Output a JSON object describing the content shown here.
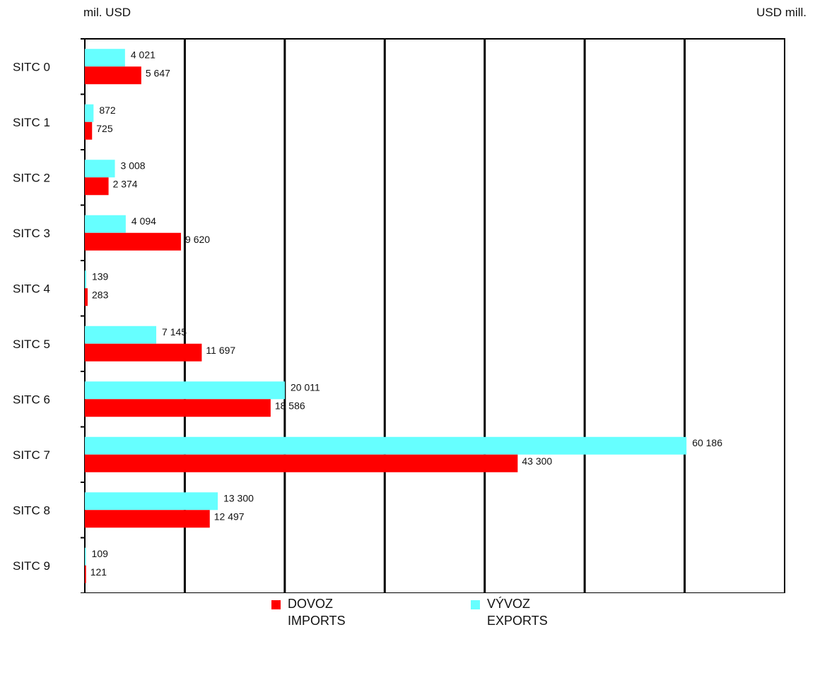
{
  "header": {
    "unit_left": "mil. USD",
    "unit_right": "USD mill."
  },
  "legend": {
    "imports": {
      "line1": "DOVOZ",
      "line2": "IMPORTS",
      "color": "#ff0000"
    },
    "exports": {
      "line1": "VÝVOZ",
      "line2": "EXPORTS",
      "color": "#66ffff"
    }
  },
  "chart_data": {
    "type": "bar",
    "orientation": "horizontal",
    "categories": [
      "SITC 0",
      "SITC 1",
      "SITC 2",
      "SITC 3",
      "SITC 4",
      "SITC 5",
      "SITC 6",
      "SITC 7",
      "SITC 8",
      "SITC 9"
    ],
    "series": [
      {
        "name": "VÝVOZ EXPORTS",
        "key": "exports",
        "color": "#66ffff",
        "values": [
          4021,
          872,
          3008,
          4094,
          139,
          7145,
          20011,
          60186,
          13300,
          109
        ],
        "labels": [
          "4 021",
          "872",
          "3 008",
          "4 094",
          "139",
          "7 145",
          "20 011",
          "60 186",
          "13 300",
          "109"
        ]
      },
      {
        "name": "DOVOZ IMPORTS",
        "key": "imports",
        "color": "#ff0000",
        "values": [
          5647,
          725,
          2374,
          9620,
          283,
          11697,
          18586,
          43300,
          12497,
          121
        ],
        "labels": [
          "5 647",
          "725",
          "2 374",
          "9 620",
          "283",
          "11 697",
          "18 586",
          "43 300",
          "12 497",
          "121"
        ]
      }
    ],
    "xlim": [
      0,
      70000
    ],
    "xticks": [
      0,
      10000,
      20000,
      30000,
      40000,
      50000,
      60000,
      70000
    ],
    "xtick_labels": [
      "0",
      "10 000",
      "20 000",
      "30 000",
      "40 000",
      "50 000",
      "60 000",
      "70 000"
    ],
    "grid": "vertical",
    "legend_position": "bottom"
  }
}
